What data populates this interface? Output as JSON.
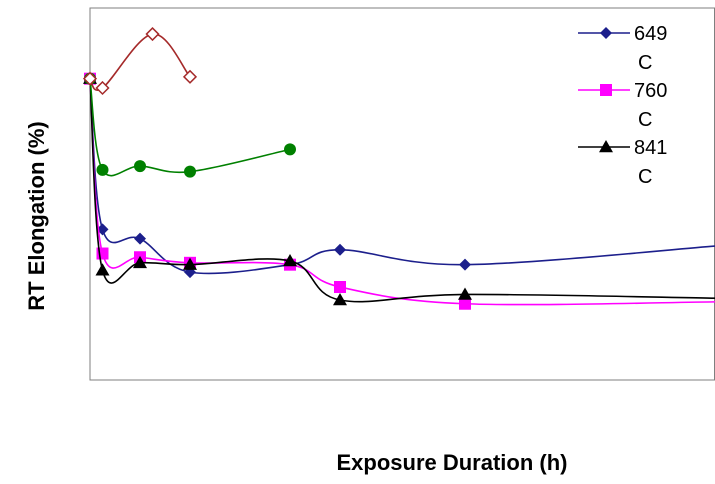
{
  "chart_data": {
    "type": "line",
    "title": "",
    "xlabel": "Exposure Duration (h)",
    "ylabel": "RT Elongation (%)",
    "x_ticks_shown": false,
    "y_ticks_shown": false,
    "grid": false,
    "legend_position": "top-right",
    "xlim": [
      0,
      25000
    ],
    "ylim": [
      0,
      100
    ],
    "series": [
      {
        "name": "649 C",
        "color": "#1c1f8c",
        "marker": "diamond",
        "x": [
          0,
          500,
          2000,
          4000,
          8000,
          10000,
          15000,
          25000
        ],
        "y": [
          81,
          40.5,
          38,
          29,
          31,
          35,
          31,
          36
        ]
      },
      {
        "name": "760 C",
        "color": "#ff00ff",
        "marker": "square",
        "x": [
          0,
          500,
          2000,
          4000,
          8000,
          10000,
          15000,
          25000
        ],
        "y": [
          81,
          34,
          33,
          31.5,
          31,
          25,
          20.5,
          21
        ]
      },
      {
        "name": "841 C",
        "color": "#000000",
        "marker": "triangle",
        "x": [
          0,
          500,
          2000,
          4000,
          8000,
          10000,
          15000,
          25000
        ],
        "y": [
          81,
          29.5,
          31.5,
          31,
          32,
          21.5,
          23,
          22
        ]
      },
      {
        "name": "",
        "color": "#008000",
        "marker": "circle",
        "x": [
          0,
          500,
          2000,
          4000,
          8000
        ],
        "y": [
          81,
          56.5,
          57.5,
          56,
          62
        ]
      },
      {
        "name": "",
        "color": "#a52a2a",
        "marker": "open-diamond",
        "x": [
          0,
          500,
          2500,
          4000
        ],
        "y": [
          81,
          78.5,
          93,
          81.5
        ]
      }
    ],
    "legend": [
      {
        "series_index": 0,
        "line1": "649",
        "line2": "C"
      },
      {
        "series_index": 1,
        "line1": "760",
        "line2": "C"
      },
      {
        "series_index": 2,
        "line1": "841",
        "line2": "C"
      }
    ]
  }
}
